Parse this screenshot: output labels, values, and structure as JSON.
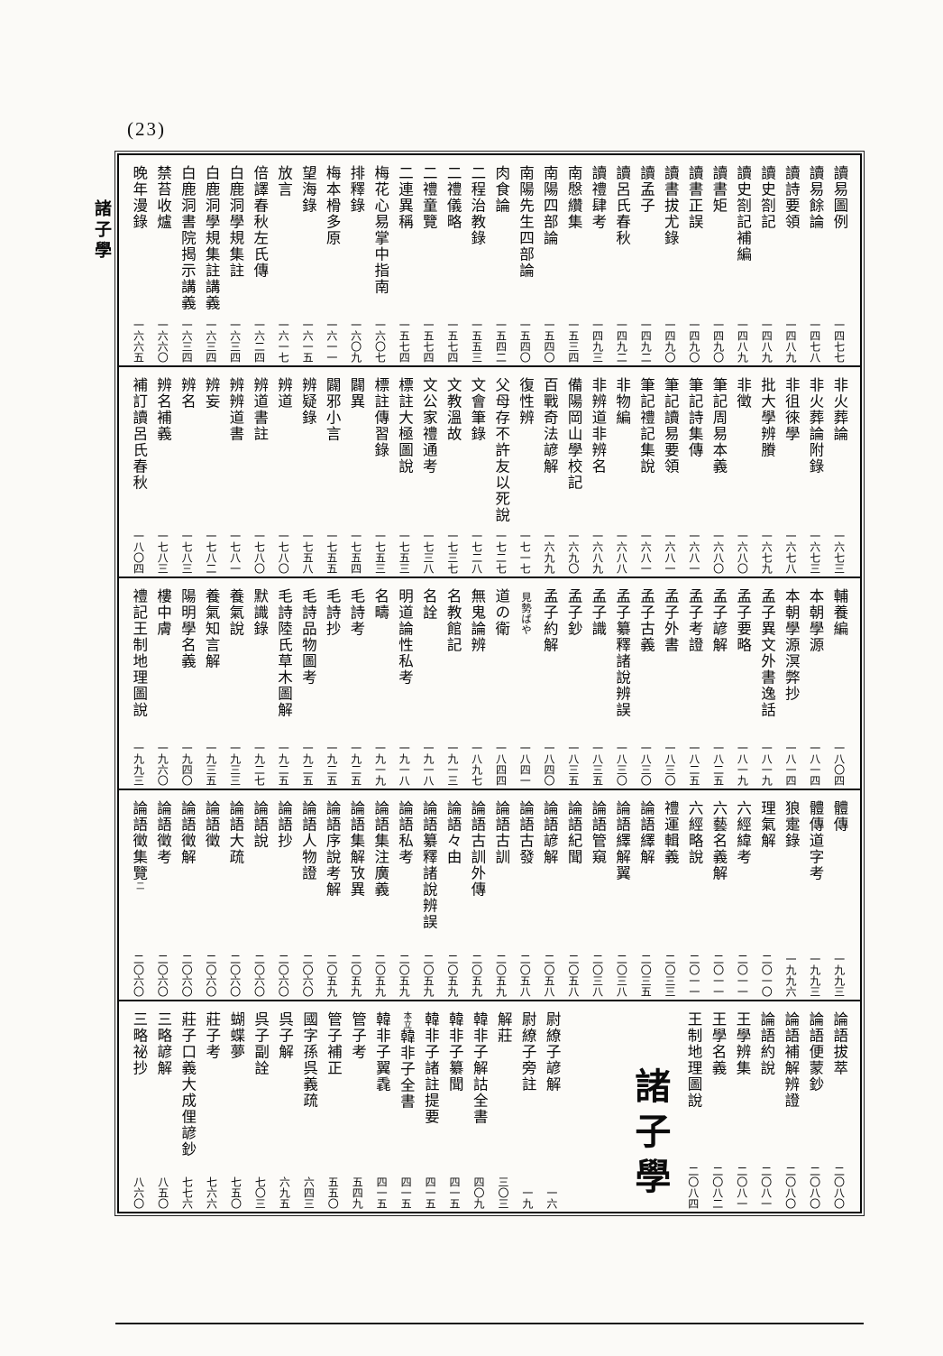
{
  "page": {
    "number": "(23)",
    "margin_label": "諸子學"
  },
  "bands": [
    {
      "items": [
        {
          "t": "讀易圖例",
          "n": "一四七七"
        },
        {
          "t": "讀易餘論",
          "n": "一四七八"
        },
        {
          "t": "讀詩要領",
          "n": "一四八九"
        },
        {
          "t": "讀史劄記",
          "n": "一四八九"
        },
        {
          "t": "讀史劄記補編",
          "n": "一四八九"
        },
        {
          "t": "讀書矩",
          "n": "一四九〇"
        },
        {
          "t": "讀書正誤",
          "n": "一四九〇"
        },
        {
          "t": "讀書拔尤錄",
          "n": "一四九〇"
        },
        {
          "t": "讀孟子",
          "n": "一四九二"
        },
        {
          "t": "讀呂氏春秋",
          "n": "一四九二"
        },
        {
          "t": "讀禮肆考",
          "n": "一四九三"
        },
        {
          "t": "南慇纘集",
          "n": "一五三四"
        },
        {
          "t": "南陽四部論",
          "n": "一五四〇"
        },
        {
          "t": "南陽先生四部論",
          "n": "一五四〇"
        },
        {
          "t": "肉食論",
          "n": "一五四二"
        },
        {
          "t": "二程治教錄",
          "n": "一五五三"
        },
        {
          "t": "二禮儀略",
          "n": "一五七四"
        },
        {
          "t": "二禮童覽",
          "n": "一五七四"
        },
        {
          "t": "二連異稱",
          "n": "一五七四"
        },
        {
          "t": "梅花心易掌中指南",
          "n": "一六〇七"
        },
        {
          "t": "排釋錄",
          "n": "一六〇九"
        },
        {
          "t": "梅本榾多原",
          "n": "一六一一"
        },
        {
          "t": "望海錄",
          "n": "一六一五"
        },
        {
          "t": "放言",
          "n": "一六一七"
        },
        {
          "t": "倍譯春秋左氏傳",
          "n": "一六二四"
        },
        {
          "t": "白鹿洞學規集註",
          "n": "一六三四"
        },
        {
          "t": "白鹿洞學規集註講義",
          "n": "一六三四"
        },
        {
          "t": "白鹿洞書院揭示講義",
          "n": "一六三四"
        },
        {
          "t": "禁苔收爐",
          "n": "一六六〇"
        },
        {
          "t": "晚年漫錄",
          "n": "一六六五"
        }
      ]
    },
    {
      "items": [
        {
          "t": "非火葬論",
          "n": "一六七三"
        },
        {
          "t": "非火葬論附錄",
          "n": "一六七三"
        },
        {
          "t": "非徂徠學",
          "n": "一六七八"
        },
        {
          "t": "批大學辨賸",
          "n": "一六七九"
        },
        {
          "t": "非徵",
          "n": "一六八〇"
        },
        {
          "t": "筆記周易本義",
          "n": "一六八〇"
        },
        {
          "t": "筆記詩集傳",
          "n": "一六八一"
        },
        {
          "t": "筆記讀易要領",
          "n": "一六八一"
        },
        {
          "t": "筆記禮記集說",
          "n": "一六八一"
        },
        {
          "t": "非物編",
          "n": "一六八八"
        },
        {
          "t": "非辨道非辨名",
          "n": "一六八九"
        },
        {
          "t": "備陽岡山學校記",
          "n": "一六九〇"
        },
        {
          "t": "百戰奇法諺解",
          "n": "一六九九"
        },
        {
          "t": "復性辨",
          "n": "一七一七"
        },
        {
          "t": "父母存不許友以死說",
          "n": "一七二七"
        },
        {
          "t": "文會筆錄",
          "n": "一七二八"
        },
        {
          "t": "文教溫故",
          "n": "一七三七"
        },
        {
          "t": "文公家禮通考",
          "n": "一七三八"
        },
        {
          "t": "標註大極圖說",
          "n": "一七五三"
        },
        {
          "t": "標註傳習錄",
          "n": "一七五三"
        },
        {
          "t": "闢異",
          "n": "一七五四"
        },
        {
          "t": "闢邪小言",
          "n": "一七五五"
        },
        {
          "t": "辨疑錄",
          "n": "一七五八"
        },
        {
          "t": "辨道",
          "n": "一七八〇"
        },
        {
          "t": "辨道書註",
          "n": "一七八〇"
        },
        {
          "t": "辨辨道書",
          "n": "一七八一"
        },
        {
          "t": "辨妄",
          "n": "一七八二"
        },
        {
          "t": "辨名",
          "n": "一七八三"
        },
        {
          "t": "辨名補義",
          "n": "一七八三"
        },
        {
          "t": "補訂讀呂氏春秋",
          "n": "一八〇四"
        }
      ]
    },
    {
      "items": [
        {
          "t": "輔養編",
          "n": "一八〇四"
        },
        {
          "t": "本朝學源",
          "n": "一八一四"
        },
        {
          "t": "本朝學源溟弊抄",
          "n": "一八一四"
        },
        {
          "t": "孟子異文外書逸話",
          "n": "一八一九"
        },
        {
          "t": "孟子要略",
          "n": "一八一九"
        },
        {
          "t": "孟子諺解",
          "n": "一八二五"
        },
        {
          "t": "孟子考證",
          "n": "一八二五"
        },
        {
          "t": "孟子外書",
          "n": "一八三〇"
        },
        {
          "t": "孟子古義",
          "n": "一八三〇"
        },
        {
          "t": "孟子纂釋諸說辨誤",
          "n": "一八三〇"
        },
        {
          "t": "孟子識",
          "n": "一八三五"
        },
        {
          "t": "孟子鈔",
          "n": "一八三五"
        },
        {
          "t": "孟子約解",
          "n": "一八四〇"
        },
        {
          "t": "見勢ばや",
          "n": "一八四一",
          "small": true
        },
        {
          "t": "道の衛",
          "n": "一八四四"
        },
        {
          "t": "無鬼論辨",
          "n": "一八九七"
        },
        {
          "t": "名教館記",
          "n": "一九一三"
        },
        {
          "t": "名詮",
          "n": "一九一八"
        },
        {
          "t": "明道論性私考",
          "n": "一九一八"
        },
        {
          "t": "名疇",
          "n": "一九一九"
        },
        {
          "t": "毛詩考",
          "n": "一九二五"
        },
        {
          "t": "毛詩抄",
          "n": "一九二五"
        },
        {
          "t": "毛詩品物圖考",
          "n": "一九二五"
        },
        {
          "t": "毛詩陸氏草木圖解",
          "n": "一九二五"
        },
        {
          "t": "默識錄",
          "n": "一九二七"
        },
        {
          "t": "養氣說",
          "n": "一九三三"
        },
        {
          "t": "養氣知言解",
          "n": "一九三五"
        },
        {
          "t": "陽明學名義",
          "n": "一九四〇"
        },
        {
          "t": "樓中膚",
          "n": "一九六〇"
        },
        {
          "t": "禮記王制地理圖說",
          "n": "一九九三"
        }
      ]
    },
    {
      "items": [
        {
          "t": "體傳",
          "n": "一九九三"
        },
        {
          "t": "體傳道字考",
          "n": "一九九三"
        },
        {
          "t": "狼疐錄",
          "n": "一九九六"
        },
        {
          "t": "理氣解",
          "n": "二〇一〇"
        },
        {
          "t": "六經緯考",
          "n": "二〇一一"
        },
        {
          "t": "六藝名義解",
          "n": "二〇一一"
        },
        {
          "t": "六經略說",
          "n": "二〇一一"
        },
        {
          "t": "禮運輯義",
          "n": "二〇三三"
        },
        {
          "t": "論語繹解",
          "n": "二〇三五"
        },
        {
          "t": "論語繹解翼",
          "n": "二〇三八"
        },
        {
          "t": "論語管窺",
          "n": "二〇三八"
        },
        {
          "t": "論語紀聞",
          "n": "二〇五八"
        },
        {
          "t": "論語諺解",
          "n": "二〇五八"
        },
        {
          "t": "論語古發",
          "n": "二〇五八"
        },
        {
          "t": "論語古訓",
          "n": "二〇五九"
        },
        {
          "t": "論語古訓外傳",
          "n": "二〇五九"
        },
        {
          "t": "論語々由",
          "n": "二〇五九"
        },
        {
          "t": "論語纂釋諸說辨誤",
          "n": "二〇五九"
        },
        {
          "t": "論語私考",
          "n": "二〇五九"
        },
        {
          "t": "論語集注廣義",
          "n": "二〇五九"
        },
        {
          "t": "論語集解攷異",
          "n": "二〇五九"
        },
        {
          "t": "論語序說考解",
          "n": "二〇五九"
        },
        {
          "t": "論語人物證",
          "n": "二〇六〇"
        },
        {
          "t": "論語抄",
          "n": "二〇六〇"
        },
        {
          "t": "論語說",
          "n": "二〇六〇"
        },
        {
          "t": "論語大疏",
          "n": "二〇六〇"
        },
        {
          "t": "論語徵",
          "n": "二〇六〇"
        },
        {
          "t": "論語徵解",
          "n": "二〇六〇"
        },
        {
          "t": "論語徵考",
          "n": "二〇六〇"
        },
        {
          "t": "論語徵集覽",
          "suf": "二",
          "n": "二〇六〇"
        }
      ]
    },
    {
      "items": [
        {
          "t": "論語拔萃",
          "n": "二〇八〇"
        },
        {
          "t": "論語便蒙鈔",
          "n": "二〇八〇"
        },
        {
          "t": "論語補解辨證",
          "n": "二〇八〇"
        },
        {
          "t": "論語約說",
          "n": "二〇八一"
        },
        {
          "t": "王學辨集",
          "n": "二〇八一"
        },
        {
          "t": "王學名義",
          "n": "二〇八二"
        },
        {
          "t": "王制地理圖說",
          "n": "二〇八四"
        },
        {
          "type": "header",
          "t": "諸子學"
        },
        {
          "t": "尉繚子諺解",
          "n": "一六"
        },
        {
          "t": "尉繚子旁註",
          "n": "一九"
        },
        {
          "t": "解莊",
          "n": "三〇三"
        },
        {
          "t": "韓非子解詁全書",
          "n": "四〇九"
        },
        {
          "t": "韓非子纂聞",
          "n": "四一五"
        },
        {
          "t": "韓非子諸註提要",
          "n": "四一五"
        },
        {
          "t": "韓非子全書",
          "s": "本立",
          "n": "四一五"
        },
        {
          "t": "韓非子翼毳",
          "n": "四一五"
        },
        {
          "t": "管子考",
          "n": "五四九"
        },
        {
          "t": "管子補正",
          "n": "五五〇"
        },
        {
          "t": "國字孫呉義疏",
          "n": "六四三"
        },
        {
          "t": "呉子解",
          "n": "六九五"
        },
        {
          "t": "呉子副詮",
          "n": "七〇三"
        },
        {
          "t": "蝴蝶夢",
          "n": "七五〇"
        },
        {
          "t": "莊子考",
          "n": "七六六"
        },
        {
          "t": "莊子口義大成俚諺鈔",
          "n": "七七六"
        },
        {
          "t": "三略諺解",
          "n": "八五〇"
        },
        {
          "t": "三略祕抄",
          "n": "八六〇"
        }
      ]
    }
  ]
}
